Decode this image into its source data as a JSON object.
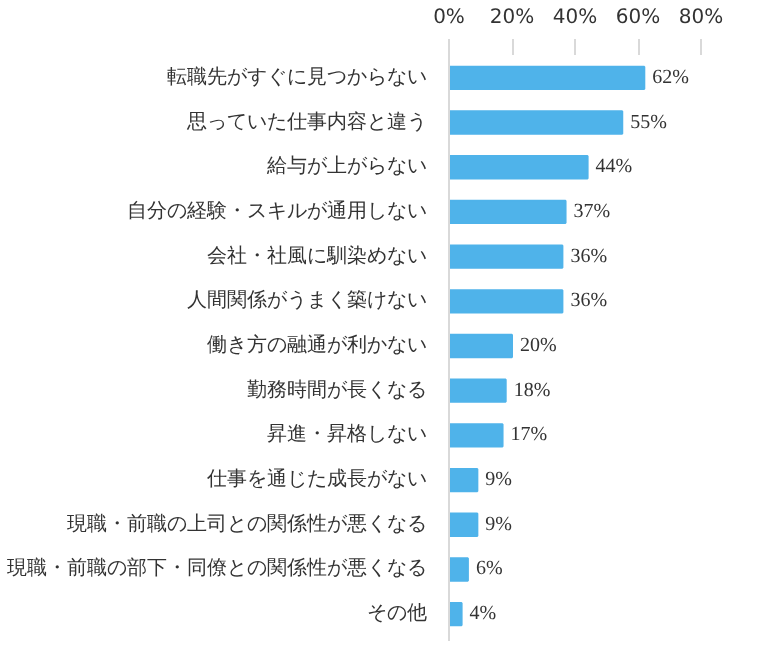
{
  "chart_data": {
    "type": "bar",
    "orientation": "horizontal",
    "categories": [
      "転職先がすぐに見つからない",
      "思っていた仕事内容と違う",
      "給与が上がらない",
      "自分の経験・スキルが通用しない",
      "会社・社風に馴染めない",
      "人間関係がうまく築けない",
      "働き方の融通が利かない",
      "勤務時間が長くなる",
      "昇進・昇格しない",
      "仕事を通じた成長がない",
      "現職・前職の上司との関係性が悪くなる",
      "現職・前職の部下・同僚との関係性が悪くなる",
      "その他"
    ],
    "values": [
      62,
      55,
      44,
      37,
      36,
      36,
      20,
      18,
      17,
      9,
      9,
      6,
      4
    ],
    "value_labels": [
      "62%",
      "55%",
      "44%",
      "37%",
      "36%",
      "36%",
      "20%",
      "18%",
      "17%",
      "9%",
      "9%",
      "6%",
      "4%"
    ],
    "color": "#4fb3ea",
    "xlim": [
      0,
      80
    ],
    "xticks": [
      {
        "value": 0,
        "label": "0%"
      },
      {
        "value": 20,
        "label": "20%"
      },
      {
        "value": 40,
        "label": "40%"
      },
      {
        "value": 60,
        "label": "60%"
      },
      {
        "value": 80,
        "label": "80%"
      }
    ],
    "grid": false
  }
}
